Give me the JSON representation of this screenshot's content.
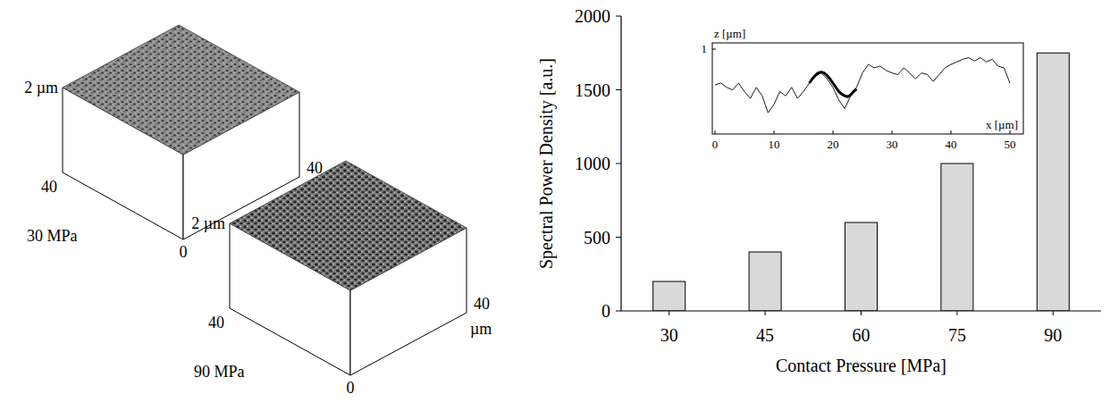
{
  "chart_data": [
    {
      "type": "bar",
      "x_label": "Contact Pressure [MPa]",
      "y_label": "Spectral Power Density [a.u.]",
      "categories": [
        "30",
        "45",
        "60",
        "75",
        "90"
      ],
      "values": [
        200,
        400,
        600,
        1000,
        1750
      ],
      "color": "#d9d9d9",
      "ylim": [
        0,
        2000
      ],
      "yticks": [
        0,
        500,
        1000,
        1500,
        2000
      ],
      "grid": false
    },
    {
      "type": "line",
      "x_label": "x [µm]",
      "y_label": "z [µm]",
      "x": [
        0,
        1,
        2,
        3,
        4,
        5,
        6,
        7,
        8,
        9,
        10,
        11,
        12,
        13,
        14,
        15,
        16,
        17,
        18,
        19,
        20,
        21,
        22,
        23,
        24,
        25,
        26,
        27,
        28,
        29,
        30,
        31,
        32,
        33,
        34,
        35,
        36,
        37,
        38,
        39,
        40,
        41,
        42,
        43,
        44,
        45,
        46,
        47,
        48,
        49,
        50
      ],
      "series": [
        {
          "color": "#000000",
          "line_style": "solid",
          "values": [
            0.58,
            0.6,
            0.55,
            0.52,
            0.6,
            0.5,
            0.42,
            0.55,
            0.45,
            0.25,
            0.35,
            0.5,
            0.45,
            0.55,
            0.42,
            0.5,
            0.6,
            0.68,
            0.72,
            0.65,
            0.55,
            0.4,
            0.3,
            0.45,
            0.55,
            0.72,
            0.82,
            0.78,
            0.8,
            0.75,
            0.72,
            0.7,
            0.78,
            0.72,
            0.65,
            0.72,
            0.7,
            0.62,
            0.7,
            0.78,
            0.82,
            0.85,
            0.88,
            0.9,
            0.86,
            0.9,
            0.85,
            0.88,
            0.8,
            0.78,
            0.6
          ]
        },
        {
          "color": "#000000",
          "line_style": "thick",
          "x": [
            16,
            16.5,
            17,
            17.5,
            18,
            18.5,
            19,
            19.5,
            20,
            20.5,
            21,
            21.5,
            22,
            22.5,
            23,
            23.5,
            24
          ],
          "values": [
            0.6,
            0.65,
            0.69,
            0.72,
            0.73,
            0.72,
            0.69,
            0.65,
            0.6,
            0.55,
            0.5,
            0.47,
            0.45,
            0.44,
            0.46,
            0.5,
            0.53
          ]
        }
      ],
      "xlim": [
        0,
        50
      ],
      "xticks": [
        0,
        10,
        20,
        30,
        40,
        50
      ],
      "ylim": [
        0,
        1
      ],
      "yticks": [
        1
      ],
      "grid": false
    }
  ],
  "surfaces": [
    {
      "label": "30 MPa",
      "z_label": "2 µm",
      "y_max": 40,
      "x_max": 40,
      "x_unit": "µm",
      "origin": 0
    },
    {
      "label": "90 MPa",
      "z_label": "2 µm",
      "y_max": 40,
      "x_max": 40,
      "x_unit": "µm",
      "origin": 0
    }
  ]
}
